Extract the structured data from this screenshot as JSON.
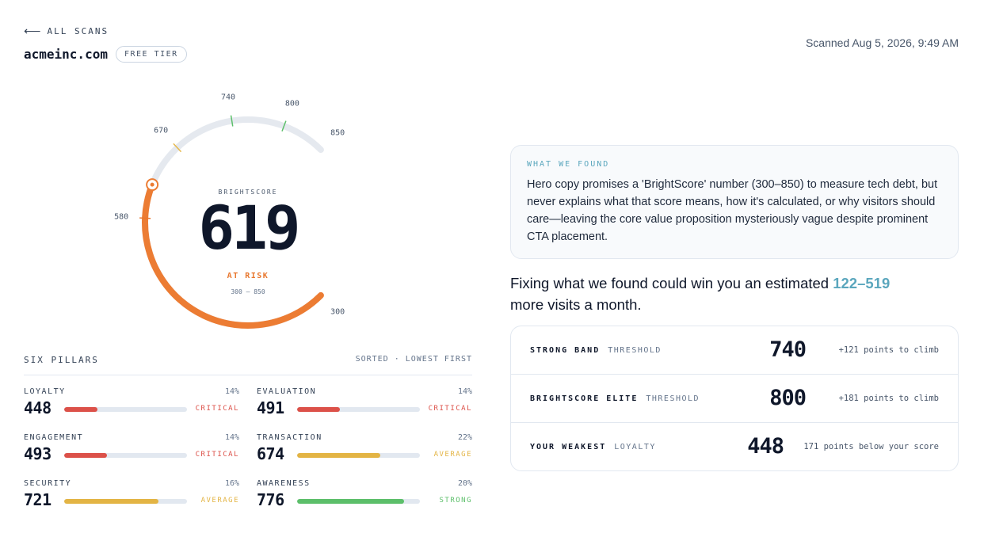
{
  "header": {
    "back_label": "ALL SCANS",
    "domain": "acmeinc.com",
    "tier": "FREE TIER",
    "scanned": "Scanned Aug 5, 2026, 9:49 AM"
  },
  "gauge": {
    "caption": "BRIGHTSCORE",
    "score": "619",
    "status": "AT RISK",
    "range": "300 — 850",
    "score_value": 619,
    "min": 300,
    "max": 850,
    "ticks": [
      "300",
      "580",
      "670",
      "740",
      "800",
      "850"
    ],
    "colors": {
      "progress": "#ec7c33",
      "track": "#e5e9ef",
      "tick_critical": "#e8772e",
      "tick_average": "#e6b84a",
      "tick_strong": "#5cbf6a"
    }
  },
  "pillars": {
    "title": "SIX PILLARS",
    "sort_label": "SORTED · LOWEST FIRST",
    "items": [
      {
        "name": "LOYALTY",
        "percent": "14%",
        "score": "448",
        "status": "CRITICAL",
        "fill": 0.27,
        "color": "#dc5149"
      },
      {
        "name": "EVALUATION",
        "percent": "14%",
        "score": "491",
        "status": "CRITICAL",
        "fill": 0.35,
        "color": "#dc5149"
      },
      {
        "name": "ENGAGEMENT",
        "percent": "14%",
        "score": "493",
        "status": "CRITICAL",
        "fill": 0.35,
        "color": "#dc5149"
      },
      {
        "name": "TRANSACTION",
        "percent": "22%",
        "score": "674",
        "status": "AVERAGE",
        "fill": 0.68,
        "color": "#e3b444"
      },
      {
        "name": "SECURITY",
        "percent": "16%",
        "score": "721",
        "status": "AVERAGE",
        "fill": 0.77,
        "color": "#e3b444"
      },
      {
        "name": "AWARENESS",
        "percent": "20%",
        "score": "776",
        "status": "STRONG",
        "fill": 0.87,
        "color": "#5cbf6a"
      }
    ]
  },
  "finding": {
    "title": "WHAT WE FOUND",
    "text": "Hero copy promises a 'BrightScore' number (300–850) to measure tech debt, but never explains what that score means, how it's calculated, or why visitors should care—leaving the core value proposition mysteriously vague despite prominent CTA placement."
  },
  "estimate": {
    "before": "Fixing what we found could win you an estimated ",
    "range": "122–519",
    "after": "more visits a month."
  },
  "thresholds": [
    {
      "label": "STRONG BAND",
      "sub": "THRESHOLD",
      "value": "740",
      "note": "+121 points to climb"
    },
    {
      "label": "BRIGHTSCORE ELITE",
      "sub": "THRESHOLD",
      "value": "800",
      "note": "+181 points to climb"
    },
    {
      "label": "YOUR WEAKEST",
      "sub": "LOYALTY",
      "value": "448",
      "note": "171 points below your score"
    }
  ]
}
